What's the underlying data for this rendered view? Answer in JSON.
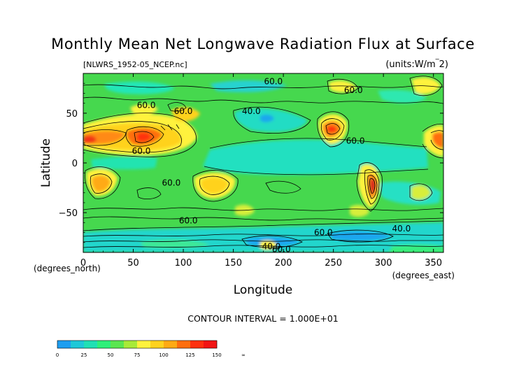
{
  "chart_data": {
    "type": "heatmap",
    "title": "Monthly Mean Net Longwave Radiation Flux at Surface",
    "subtitle_left": "[NLWRS_1952-05_NCEP.nc]",
    "subtitle_right": "(units:W/m^2)",
    "xlabel": "Longitude",
    "ylabel": "Latitude",
    "x_unit_label": "(degrees_east)",
    "y_unit_label": "(degrees_north)",
    "xlim": [
      0,
      360
    ],
    "ylim": [
      -90,
      90
    ],
    "x_ticks": [
      0,
      50,
      100,
      150,
      200,
      250,
      300,
      350
    ],
    "y_ticks": [
      50,
      0,
      -50
    ],
    "y_tick_labels": [
      "50",
      "0",
      "−50"
    ],
    "contour_interval_text": "CONTOUR INTERVAL = 1.000E+01",
    "contour_labels": [
      {
        "text": "60.0",
        "lon": 190,
        "lat": 82
      },
      {
        "text": "60.0",
        "lon": 270,
        "lat": 73
      },
      {
        "text": "60.0",
        "lon": 63,
        "lat": 58
      },
      {
        "text": "60.0",
        "lon": 100,
        "lat": 52
      },
      {
        "text": "40.0",
        "lon": 168,
        "lat": 52
      },
      {
        "text": "60.0",
        "lon": 272,
        "lat": 22
      },
      {
        "text": "60.0",
        "lon": 58,
        "lat": 12
      },
      {
        "text": "60.0",
        "lon": 88,
        "lat": -20
      },
      {
        "text": "60.0",
        "lon": 105,
        "lat": -58
      },
      {
        "text": "60.0",
        "lon": 240,
        "lat": -70
      },
      {
        "text": "40.0",
        "lon": 318,
        "lat": -66
      },
      {
        "text": "40.0",
        "lon": 188,
        "lat": -84
      },
      {
        "text": "60.0",
        "lon": 198,
        "lat": -87
      }
    ],
    "colorbar": {
      "colors": [
        "#1e9ef0",
        "#1ec8d8",
        "#20e0b4",
        "#2ef07a",
        "#5ae650",
        "#a8ea38",
        "#fff23c",
        "#ffd21e",
        "#ffaa14",
        "#ff6e0e",
        "#ff3010",
        "#f21414"
      ],
      "tick_labels": [
        "0",
        "25",
        "50",
        "75",
        "100",
        "125",
        "150",
        "∞"
      ]
    }
  }
}
